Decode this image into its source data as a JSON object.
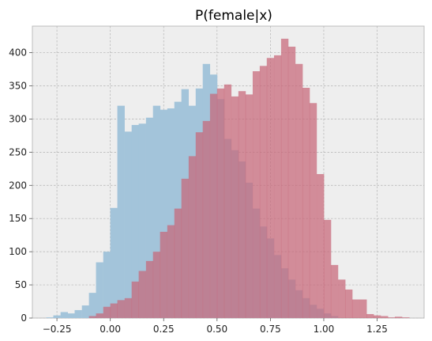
{
  "chart_data": {
    "type": "bar",
    "title": "P(female|x)",
    "xlabel": "",
    "ylabel": "",
    "xlim": [
      -0.365,
      1.47
    ],
    "ylim": [
      0,
      440
    ],
    "xticks": [
      -0.25,
      0.0,
      0.25,
      0.5,
      0.75,
      1.0,
      1.25
    ],
    "xtick_labels": [
      "−0.25",
      "0.00",
      "0.25",
      "0.50",
      "0.75",
      "1.00",
      "1.25"
    ],
    "yticks": [
      0,
      50,
      100,
      150,
      200,
      250,
      300,
      350,
      400
    ],
    "ytick_labels": [
      "0",
      "50",
      "100",
      "150",
      "200",
      "250",
      "300",
      "350",
      "400"
    ],
    "grid": true,
    "series": [
      {
        "color": "#a3c4da",
        "bin_width": 0.0335,
        "bins": [
          [
            -0.3,
            1
          ],
          [
            -0.267,
            4
          ],
          [
            -0.233,
            9
          ],
          [
            -0.2,
            7
          ],
          [
            -0.167,
            12
          ],
          [
            -0.133,
            19
          ],
          [
            -0.1,
            38
          ],
          [
            -0.067,
            84
          ],
          [
            -0.033,
            100
          ],
          [
            0.0,
            166
          ],
          [
            0.033,
            320
          ],
          [
            0.067,
            281
          ],
          [
            0.1,
            291
          ],
          [
            0.133,
            293
          ],
          [
            0.167,
            302
          ],
          [
            0.2,
            320
          ],
          [
            0.233,
            314
          ],
          [
            0.267,
            316
          ],
          [
            0.3,
            326
          ],
          [
            0.333,
            345
          ],
          [
            0.367,
            320
          ],
          [
            0.4,
            346
          ],
          [
            0.433,
            383
          ],
          [
            0.467,
            367
          ],
          [
            0.5,
            330
          ],
          [
            0.533,
            270
          ],
          [
            0.567,
            253
          ],
          [
            0.6,
            236
          ],
          [
            0.633,
            204
          ],
          [
            0.667,
            165
          ],
          [
            0.7,
            138
          ],
          [
            0.733,
            120
          ],
          [
            0.767,
            95
          ],
          [
            0.8,
            75
          ],
          [
            0.833,
            58
          ],
          [
            0.867,
            42
          ],
          [
            0.9,
            30
          ],
          [
            0.933,
            20
          ],
          [
            0.967,
            14
          ],
          [
            1.0,
            7
          ],
          [
            1.033,
            3
          ]
        ]
      },
      {
        "color": "#c76679",
        "bin_width": 0.0335,
        "bins": [
          [
            -0.1,
            3
          ],
          [
            -0.067,
            7
          ],
          [
            -0.033,
            17
          ],
          [
            0.0,
            22
          ],
          [
            0.033,
            27
          ],
          [
            0.067,
            30
          ],
          [
            0.1,
            55
          ],
          [
            0.133,
            71
          ],
          [
            0.167,
            86
          ],
          [
            0.2,
            100
          ],
          [
            0.233,
            130
          ],
          [
            0.267,
            140
          ],
          [
            0.3,
            165
          ],
          [
            0.333,
            210
          ],
          [
            0.367,
            244
          ],
          [
            0.4,
            280
          ],
          [
            0.433,
            297
          ],
          [
            0.467,
            338
          ],
          [
            0.5,
            346
          ],
          [
            0.533,
            352
          ],
          [
            0.567,
            334
          ],
          [
            0.6,
            342
          ],
          [
            0.633,
            337
          ],
          [
            0.667,
            372
          ],
          [
            0.7,
            380
          ],
          [
            0.733,
            392
          ],
          [
            0.767,
            396
          ],
          [
            0.8,
            421
          ],
          [
            0.833,
            409
          ],
          [
            0.867,
            383
          ],
          [
            0.9,
            347
          ],
          [
            0.933,
            324
          ],
          [
            0.967,
            217
          ],
          [
            1.0,
            148
          ],
          [
            1.033,
            80
          ],
          [
            1.067,
            58
          ],
          [
            1.1,
            43
          ],
          [
            1.133,
            28
          ],
          [
            1.167,
            28
          ],
          [
            1.2,
            6
          ],
          [
            1.233,
            4
          ],
          [
            1.267,
            3
          ],
          [
            1.3,
            1
          ],
          [
            1.333,
            2
          ],
          [
            1.367,
            1
          ]
        ]
      }
    ]
  }
}
